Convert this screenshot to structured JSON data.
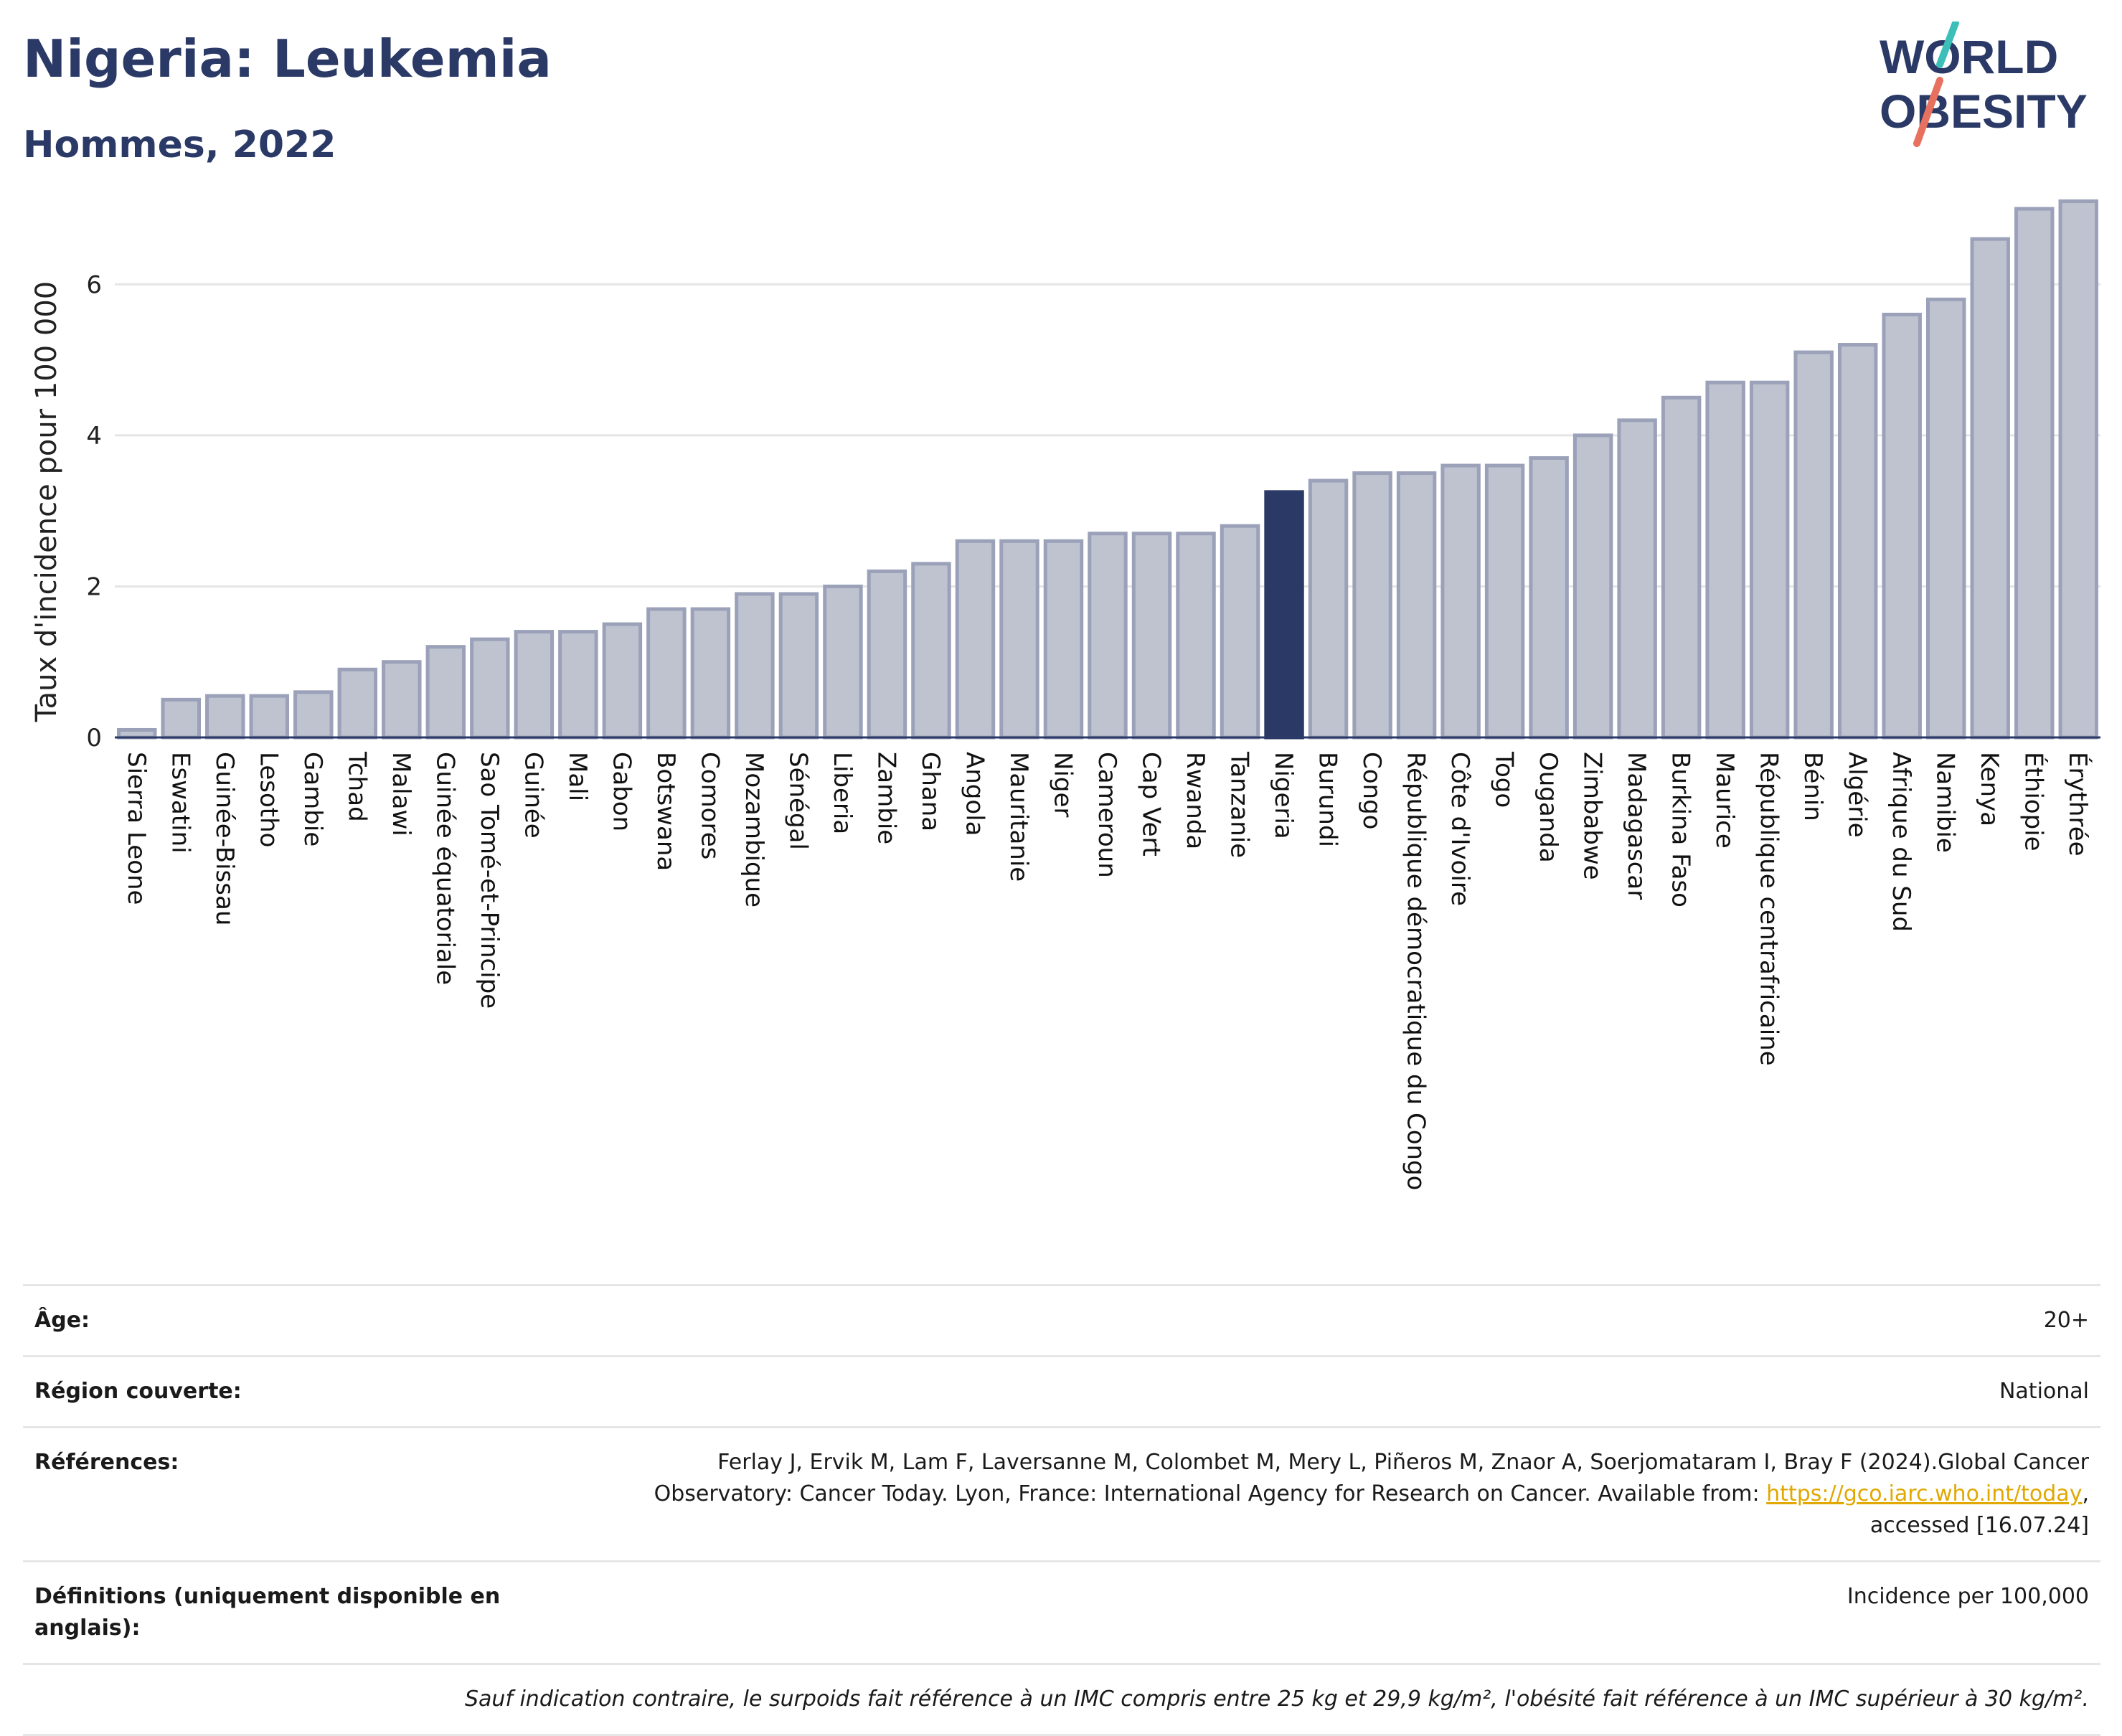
{
  "header": {
    "title": "Nigeria: Leukemia",
    "subtitle": "Hommes, 2022",
    "logo_line1": "WORLD",
    "logo_line2": "OBESITY"
  },
  "colors": {
    "bar": "#bfc3d0",
    "bar_border": "#9aa1b8",
    "highlight": "#2b3966",
    "grid": "#e5e5e5",
    "title": "#2b3966",
    "logo_teal": "#3bbfb8",
    "logo_coral": "#e8705f",
    "link": "#e0a800"
  },
  "chart_data": {
    "type": "bar",
    "title": "Nigeria: Leukemia",
    "subtitle": "Hommes, 2022",
    "ylabel": "Taux d'incidence pour 100 000",
    "ylim": [
      0,
      7.2
    ],
    "yticks": [
      0,
      2,
      4,
      6
    ],
    "grid": true,
    "highlight": "Nigeria",
    "categories": [
      "Sierra Leone",
      "Eswatini",
      "Guinée-Bissau",
      "Lesotho",
      "Gambie",
      "Tchad",
      "Malawi",
      "Guinée équatoriale",
      "Sao Tomé-et-Principe",
      "Guinée",
      "Mali",
      "Gabon",
      "Botswana",
      "Comores",
      "Mozambique",
      "Sénégal",
      "Liberia",
      "Zambie",
      "Ghana",
      "Angola",
      "Mauritanie",
      "Niger",
      "Cameroun",
      "Cap Vert",
      "Rwanda",
      "Tanzanie",
      "Nigeria",
      "Burundi",
      "Congo",
      "République démocratique du Congo",
      "Côte d'Ivoire",
      "Togo",
      "Ouganda",
      "Zimbabwe",
      "Madagascar",
      "Burkina Faso",
      "Maurice",
      "République centrafricaine",
      "Bénin",
      "Algérie",
      "Afrique du Sud",
      "Namibie",
      "Kenya",
      "Éthiopie",
      "Érythrée"
    ],
    "values": [
      0.1,
      0.5,
      0.55,
      0.55,
      0.6,
      0.9,
      1.0,
      1.2,
      1.3,
      1.4,
      1.4,
      1.5,
      1.7,
      1.7,
      1.9,
      1.9,
      2.0,
      2.2,
      2.3,
      2.6,
      2.6,
      2.6,
      2.7,
      2.7,
      2.7,
      2.8,
      3.25,
      3.4,
      3.5,
      3.5,
      3.6,
      3.6,
      3.7,
      4.0,
      4.2,
      4.5,
      4.7,
      4.7,
      5.1,
      5.2,
      5.6,
      5.8,
      6.6,
      7.0,
      7.1
    ]
  },
  "meta": {
    "age_key": "Âge:",
    "age_val": "20+",
    "region_key": "Région couverte:",
    "region_val": "National",
    "ref_key": "Références:",
    "ref_text1": "Ferlay J, Ervik M, Lam F, Laversanne M, Colombet M, Mery L, Piñeros M, Znaor A, Soerjomataram I, Bray F (2024).Global Cancer",
    "ref_text2": "Observatory: Cancer Today. Lyon, France: International Agency for Research on Cancer. Available from: ",
    "ref_link": "https://gco.iarc.who.int/today",
    "ref_text3": ",",
    "ref_text4": "accessed [16.07.24]",
    "def_key": "Définitions (uniquement disponible en anglais):",
    "def_val": "Incidence per 100,000",
    "note": "Sauf indication contraire, le surpoids fait référence à un IMC compris entre 25 kg et 29,9 kg/m², l'obésité fait référence à un IMC supérieur à 30 kg/m²."
  }
}
